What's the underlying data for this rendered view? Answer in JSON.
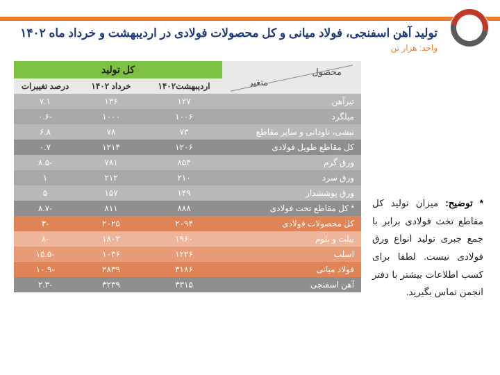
{
  "title": "تولید آهن اسفنجی، فولاد میانی و کل محصولات فولادی در اردیبهشت و خرداد ماه ۱۴۰۲",
  "unit": "واحد: هزار تن",
  "note_label": "* توضیح:",
  "note_text": " میزان تولید کل مقاطع تخت فولادی برابر با جمع جبری تولید انواع ورق فولادی نیست. لطفا برای کسب اطلاعات بیشتر با دفتر انجمن تماس بگیرید.",
  "headers": {
    "product": "محصول",
    "variable": "متغیر",
    "total": "کل تولید",
    "may": "اردیبهشت۱۴۰۲",
    "jun": "خرداد ۱۴۰۲",
    "pct": "درصد تغییرات"
  },
  "col_widths": {
    "product": "40%",
    "may": "22%",
    "jun": "20%",
    "pct": "18%"
  },
  "row_colors": {
    "light1": "#b8b8b8",
    "light2": "#a9a9a9",
    "sub_dark": "#8f8f8f",
    "orange_lt": "#efb59a",
    "orange_md": "#e79b77",
    "orange_dk": "#df8456"
  },
  "rows": [
    {
      "product": "تیرآهن",
      "may": "۱۲۷",
      "jun": "۱۳۶",
      "pct": "۷.۱",
      "c": "light1"
    },
    {
      "product": "میلگرد",
      "may": "۱۰۰۶",
      "jun": "۱۰۰۰",
      "pct": "-۰.۶",
      "c": "light2"
    },
    {
      "product": "نبشی، ناودانی و سایر مقاطع",
      "may": "۷۳",
      "jun": "۷۸",
      "pct": "۶.۸",
      "c": "light1"
    },
    {
      "product": "کل مقاطع طویل فولادی",
      "may": "۱۲۰۶",
      "jun": "۱۲۱۴",
      "pct": "۰.۷",
      "c": "sub_dark"
    },
    {
      "product": "ورق گرم",
      "may": "۸۵۴",
      "jun": "۷۸۱",
      "pct": "-۸.۵",
      "c": "light1"
    },
    {
      "product": "ورق سرد",
      "may": "۲۱۰",
      "jun": "۲۱۲",
      "pct": "۱",
      "c": "light2"
    },
    {
      "product": "ورق پوششدار",
      "may": "۱۴۹",
      "jun": "۱۵۷",
      "pct": "۵",
      "c": "light1"
    },
    {
      "product": "*  کل مقاطع تخت فولادی",
      "may": "۸۸۸",
      "jun": "۸۱۱",
      "pct": "-۸.۷",
      "c": "sub_dark"
    },
    {
      "product": "کل محصولات فولادی",
      "may": "۲۰۹۴",
      "jun": "۲۰۲۵",
      "pct": "-۳",
      "c": "orange_dk"
    },
    {
      "product": "بیلت و بلوم",
      "may": "۱۹۶۰",
      "jun": "۱۸۰۳",
      "pct": "-۸",
      "c": "orange_lt"
    },
    {
      "product": "اسلب",
      "may": "۱۲۲۶",
      "jun": "۱۰۳۶",
      "pct": "-۱۵.۵",
      "c": "orange_md"
    },
    {
      "product": "فولاد میانی",
      "may": "۳۱۸۶",
      "jun": "۲۸۳۹",
      "pct": "-۱۰.۹",
      "c": "orange_dk"
    },
    {
      "product": "آهن اسفنجی",
      "may": "۳۳۱۵",
      "jun": "۳۲۳۹",
      "pct": "-۲.۳",
      "c": "sub_dark"
    }
  ]
}
